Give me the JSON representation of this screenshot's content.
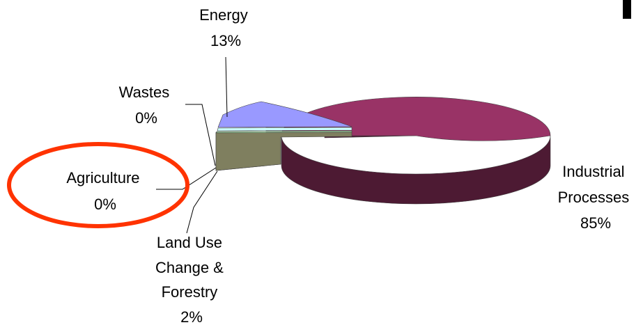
{
  "chart_data": {
    "type": "pie",
    "style": "3d-exploded",
    "slices": [
      {
        "key": "industrial",
        "label_lines": [
          "Industrial",
          "Processes",
          "85%"
        ],
        "value": 85,
        "color": "#993366",
        "side_color": "#4d1a33"
      },
      {
        "key": "land_use",
        "label_lines": [
          "Land Use",
          "Change &",
          "Forestry",
          "2%"
        ],
        "value": 2,
        "color": "#7f7f5f",
        "side_color": "#5c5c44"
      },
      {
        "key": "agriculture",
        "label_lines": [
          "Agriculture",
          "0%"
        ],
        "value": 0,
        "color": "#99cc99",
        "side_color": "#6f996f"
      },
      {
        "key": "wastes",
        "label_lines": [
          "Wastes",
          "0%"
        ],
        "value": 0,
        "color": "#ccffff",
        "side_color": "#99cccc"
      },
      {
        "key": "energy",
        "label_lines": [
          "Energy",
          "13%"
        ],
        "value": 13,
        "color": "#9999ff",
        "side_color": "#6666cc"
      }
    ],
    "legend": "none",
    "highlight": {
      "target": "agriculture",
      "shape": "ellipse",
      "color": "#ff3300"
    }
  }
}
